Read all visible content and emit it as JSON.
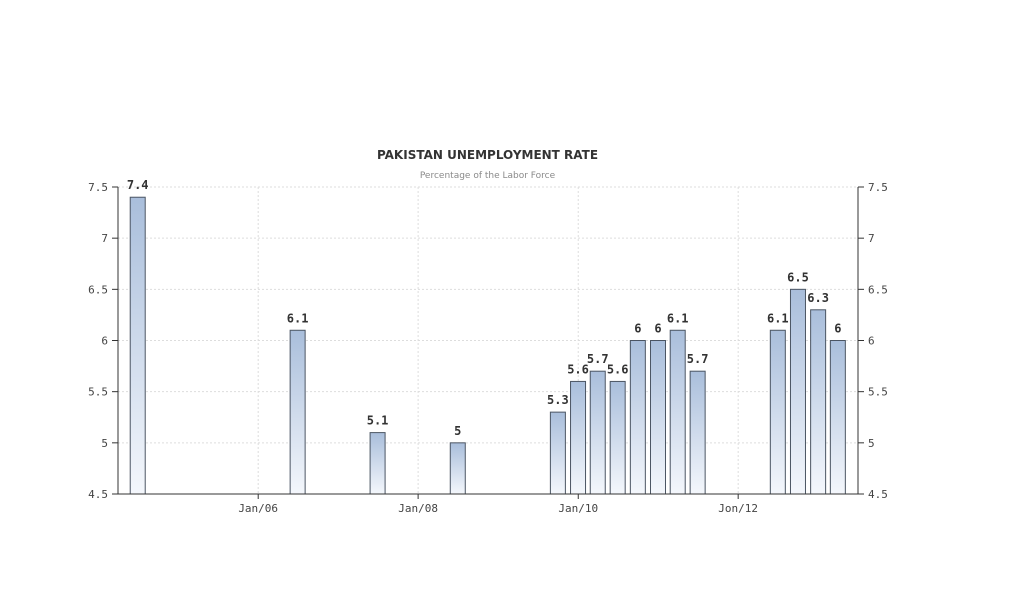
{
  "chart_data": {
    "type": "bar",
    "title": "PAKISTAN UNEMPLOYMENT RATE",
    "subtitle": "Percentage of the Labor Force",
    "xlabel": "",
    "ylabel": "",
    "ylim": [
      4.5,
      7.5
    ],
    "yticks": [
      "7.5",
      "7",
      "6.5",
      "6",
      "5.5",
      "5",
      "4.5"
    ],
    "xticks": [
      "Jan/06",
      "Jan/08",
      "Jan/10",
      "Jon/12"
    ],
    "grid": true,
    "legend": "none",
    "colors": {
      "bar_top": "#a9bedb",
      "bar_bottom": "#f4f7fc",
      "bar_edge": "#4b5563",
      "axis": "#333333",
      "grid": "#dddddd"
    },
    "points": [
      {
        "x": "2004-06-30",
        "value": 7.4,
        "label": "7.4"
      },
      {
        "x": "2006-06-30",
        "value": 6.1,
        "label": "6.1"
      },
      {
        "x": "2007-06-30",
        "value": 5.1,
        "label": "5.1"
      },
      {
        "x": "2008-06-30",
        "value": 5.0,
        "label": "5"
      },
      {
        "x": "2009-09-30",
        "value": 5.3,
        "label": "5.3"
      },
      {
        "x": "2009-12-31",
        "value": 5.6,
        "label": "5.6"
      },
      {
        "x": "2010-03-31",
        "value": 5.7,
        "label": "5.7"
      },
      {
        "x": "2010-06-30",
        "value": 5.6,
        "label": "5.6"
      },
      {
        "x": "2010-09-30",
        "value": 6.0,
        "label": "6"
      },
      {
        "x": "2010-12-31",
        "value": 6.0,
        "label": "6"
      },
      {
        "x": "2011-03-31",
        "value": 6.1,
        "label": "6.1"
      },
      {
        "x": "2011-06-30",
        "value": 5.7,
        "label": "5.7"
      },
      {
        "x": "2012-06-30",
        "value": 6.1,
        "label": "6.1"
      },
      {
        "x": "2012-09-30",
        "value": 6.5,
        "label": "6.5"
      },
      {
        "x": "2012-12-31",
        "value": 6.3,
        "label": "6.3"
      },
      {
        "x": "2013-03-31",
        "value": 6.0,
        "label": "6"
      }
    ]
  }
}
